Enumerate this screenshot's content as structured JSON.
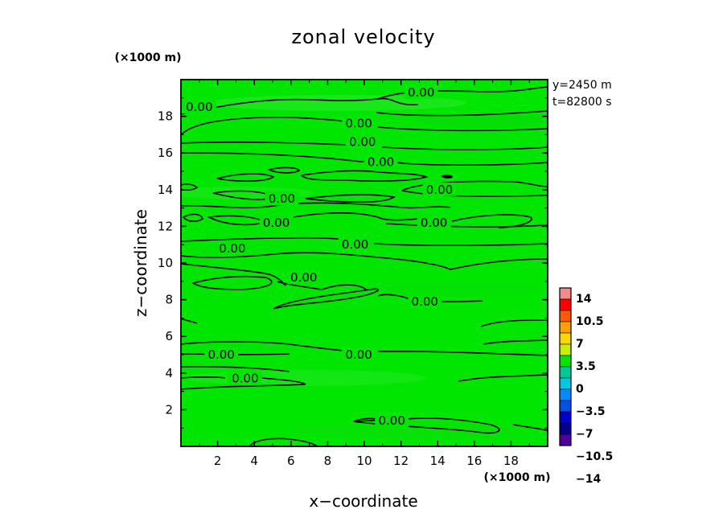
{
  "chart_data": {
    "type": "heatmap",
    "title": "zonal velocity",
    "xlabel": "x−coordinate",
    "ylabel": "z−coordinate",
    "x_unit": "(×1000 m)",
    "y_unit": "(×1000 m)",
    "info": [
      "y=2450 m",
      "t=82800 s"
    ],
    "xlim": [
      0,
      20
    ],
    "ylim": [
      0,
      20
    ],
    "x_ticks": [
      "2",
      "4",
      "6",
      "8",
      "10",
      "12",
      "14",
      "16",
      "18"
    ],
    "y_ticks": [
      "2",
      "4",
      "6",
      "8",
      "10",
      "12",
      "14",
      "16",
      "18"
    ],
    "colorbar": {
      "tick_labels": [
        "14",
        "10.5",
        "7",
        "3.5",
        "0",
        "−3.5",
        "−7",
        "−10.5",
        "−14"
      ],
      "bins": [
        "#f48a8a",
        "#ff0000",
        "#ff5a00",
        "#ffa000",
        "#ffd700",
        "#c8f000",
        "#00e600",
        "#00c896",
        "#00c8e6",
        "#008cff",
        "#0050e6",
        "#0000c8",
        "#00008c",
        "#500096"
      ]
    },
    "field_color": "#00e600",
    "contour_value_label": "0.00",
    "contour_labels": [
      {
        "x": 1.0,
        "z": 18.5
      },
      {
        "x": 13.1,
        "z": 19.3
      },
      {
        "x": 9.7,
        "z": 17.6
      },
      {
        "x": 9.9,
        "z": 16.6
      },
      {
        "x": 10.9,
        "z": 15.5
      },
      {
        "x": 5.5,
        "z": 13.5
      },
      {
        "x": 14.1,
        "z": 14.0
      },
      {
        "x": 5.2,
        "z": 12.2
      },
      {
        "x": 13.8,
        "z": 12.2
      },
      {
        "x": 2.8,
        "z": 10.8
      },
      {
        "x": 9.5,
        "z": 11.0
      },
      {
        "x": 6.7,
        "z": 9.2
      },
      {
        "x": 13.3,
        "z": 7.9
      },
      {
        "x": 2.2,
        "z": 5.0
      },
      {
        "x": 9.7,
        "z": 5.0
      },
      {
        "x": 3.5,
        "z": 3.7
      },
      {
        "x": 11.5,
        "z": 1.4
      }
    ]
  }
}
